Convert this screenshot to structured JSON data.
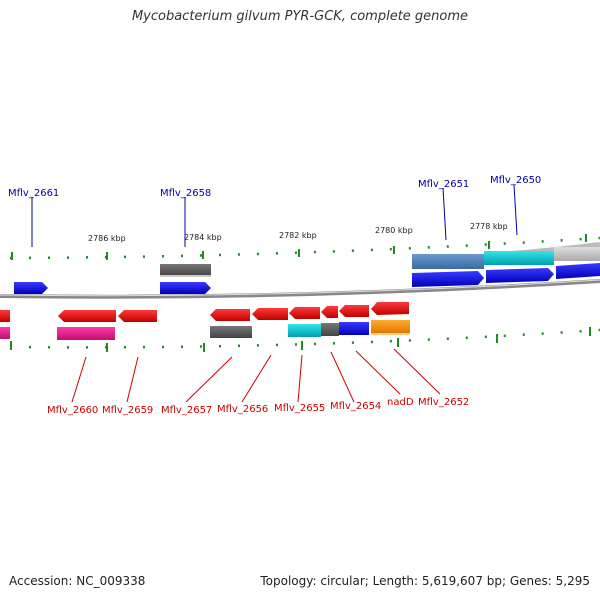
{
  "title": "Mycobacterium gilvum PYR-GCK, complete genome",
  "footer": {
    "accession": "Accession: NC_009338",
    "stats": "Topology: circular; Length: 5,619,607 bp; Genes: 5,295"
  },
  "scale_labels": [
    "2786 kbp",
    "2784 kbp",
    "2782 kbp",
    "2780 kbp",
    "2778 kbp"
  ],
  "gene_labels_top": [
    "Mflv_2661",
    "Mflv_2658",
    "Mflv_2651",
    "Mflv_2650"
  ],
  "gene_labels_bottom": [
    "Mflv_2660",
    "Mflv_2659",
    "Mflv_2657",
    "Mflv_2656",
    "Mflv_2655",
    "Mflv_2654",
    "nadD",
    "Mflv_2652"
  ],
  "colors": {
    "forward_cds": "#0000e0",
    "reverse_cds": "#e00000",
    "label_forward": "#0000aa",
    "label_reverse": "#cc0000",
    "tick": "#228822",
    "backbone": "#888888"
  }
}
